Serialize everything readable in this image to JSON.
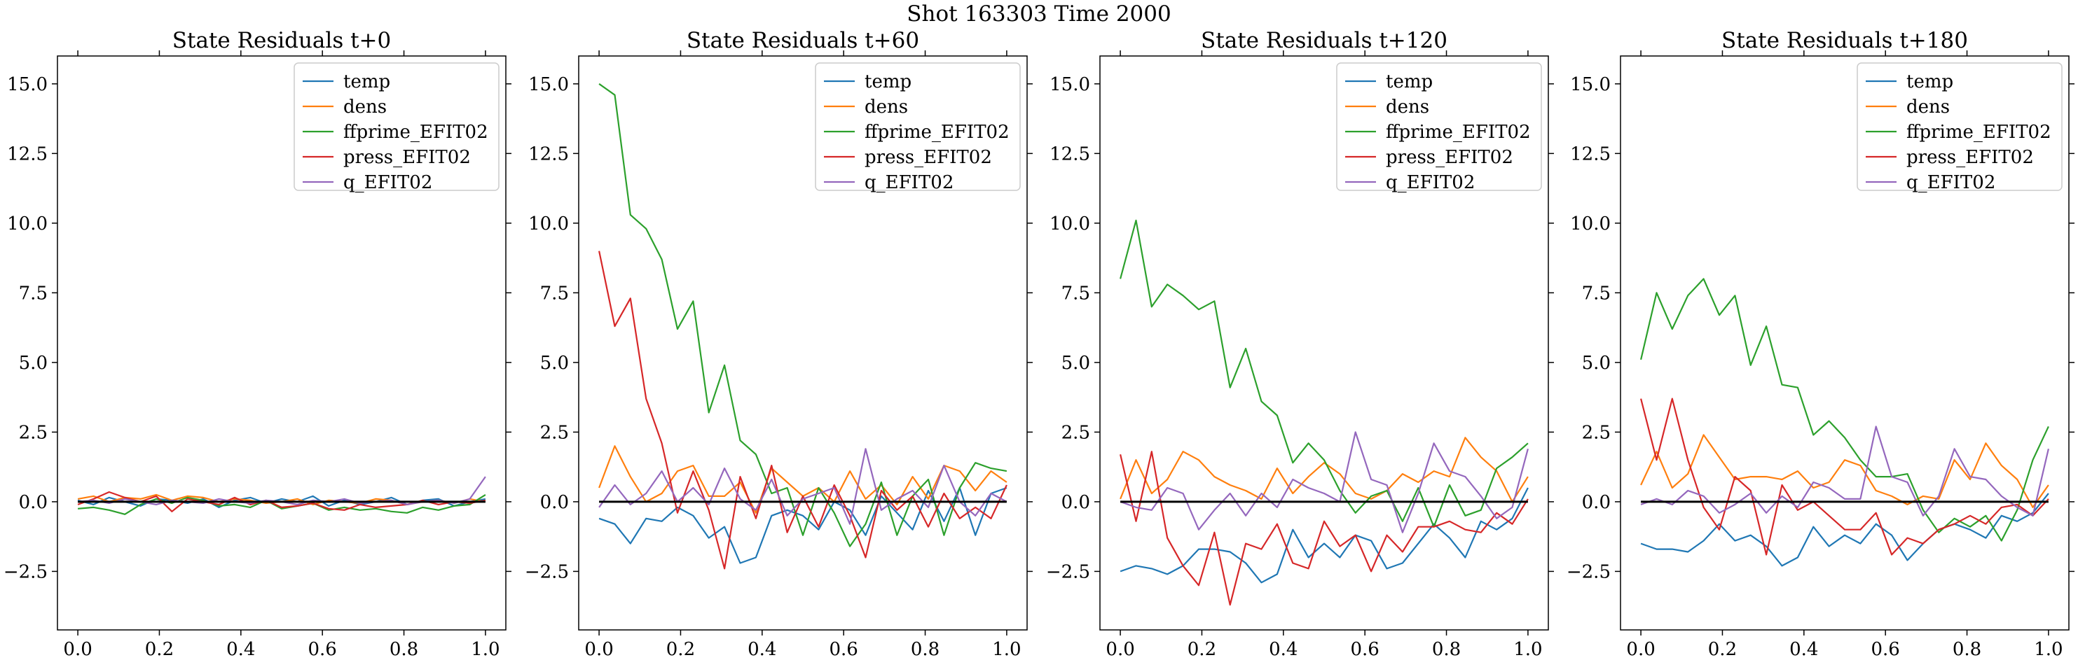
{
  "figure": {
    "title": "Shot 163303   Time 2000"
  },
  "chart_data": [
    {
      "type": "line",
      "title": "State Residuals t+0",
      "xlabel": "",
      "ylabel": "",
      "xlim": [
        -0.05,
        1.05
      ],
      "ylim": [
        -4.6,
        16.0
      ],
      "xticks": [
        0.0,
        0.2,
        0.4,
        0.6,
        0.8,
        1.0
      ],
      "xtick_labels": [
        "0.0",
        "0.2",
        "0.4",
        "0.6",
        "0.8",
        "1.0"
      ],
      "yticks": [
        -2.5,
        0.0,
        2.5,
        5.0,
        7.5,
        10.0,
        12.5,
        15.0
      ],
      "ytick_labels": [
        "−2.5",
        "0.0",
        "2.5",
        "5.0",
        "7.5",
        "10.0",
        "12.5",
        "15.0"
      ],
      "legend_position": "top-right",
      "zero_line": true,
      "x": [
        0.0,
        0.0385,
        0.0769,
        0.1154,
        0.1538,
        0.1923,
        0.2308,
        0.2692,
        0.3077,
        0.3462,
        0.3846,
        0.4231,
        0.4615,
        0.5,
        0.5385,
        0.5769,
        0.6154,
        0.6538,
        0.6923,
        0.7308,
        0.7692,
        0.8077,
        0.8462,
        0.8846,
        0.9231,
        0.9615,
        1.0
      ],
      "series": [
        {
          "name": "temp",
          "color": "#1f77b4",
          "values": [
            0.05,
            -0.1,
            0.15,
            0.0,
            -0.15,
            0.1,
            0.05,
            -0.05,
            0.1,
            -0.2,
            0.05,
            0.15,
            -0.05,
            0.1,
            0.0,
            0.2,
            -0.15,
            0.05,
            -0.1,
            0.0,
            0.15,
            -0.1,
            0.05,
            0.1,
            -0.15,
            0.0,
            0.1
          ]
        },
        {
          "name": "dens",
          "color": "#ff7f0e",
          "values": [
            0.1,
            0.2,
            0.0,
            0.15,
            0.1,
            0.25,
            0.05,
            0.2,
            0.15,
            0.0,
            0.1,
            0.05,
            -0.05,
            0.0,
            0.1,
            -0.1,
            0.05,
            0.0,
            -0.05,
            0.1,
            0.05,
            -0.1,
            0.0,
            0.05,
            -0.05,
            0.1,
            0.0
          ]
        },
        {
          "name": "ffprime_EFIT02",
          "color": "#2ca02c",
          "values": [
            -0.25,
            -0.2,
            -0.3,
            -0.45,
            -0.1,
            0.1,
            -0.05,
            0.15,
            0.05,
            -0.15,
            -0.1,
            -0.2,
            0.05,
            -0.25,
            -0.15,
            -0.05,
            -0.3,
            -0.2,
            -0.3,
            -0.25,
            -0.35,
            -0.4,
            -0.2,
            -0.3,
            -0.15,
            -0.1,
            0.25
          ]
        },
        {
          "name": "press_EFIT02",
          "color": "#d62728",
          "values": [
            -0.1,
            0.1,
            0.35,
            0.15,
            0.0,
            0.2,
            -0.35,
            0.1,
            0.0,
            -0.1,
            0.15,
            -0.1,
            0.05,
            -0.2,
            -0.15,
            -0.05,
            -0.25,
            -0.3,
            -0.1,
            -0.2,
            -0.15,
            -0.1,
            0.05,
            -0.1,
            0.0,
            -0.05,
            0.05
          ]
        },
        {
          "name": "q_EFIT02",
          "color": "#9467bd",
          "values": [
            0.0,
            0.05,
            -0.05,
            0.1,
            0.0,
            -0.1,
            0.05,
            0.0,
            -0.05,
            0.1,
            0.0,
            -0.05,
            0.05,
            0.0,
            -0.1,
            0.05,
            0.0,
            0.1,
            -0.05,
            0.0,
            0.05,
            -0.1,
            0.0,
            0.05,
            -0.05,
            0.1,
            0.9
          ]
        }
      ]
    },
    {
      "type": "line",
      "title": "State Residuals t+60",
      "xlabel": "",
      "ylabel": "",
      "xlim": [
        -0.05,
        1.05
      ],
      "ylim": [
        -4.6,
        16.0
      ],
      "xticks": [
        0.0,
        0.2,
        0.4,
        0.6,
        0.8,
        1.0
      ],
      "xtick_labels": [
        "0.0",
        "0.2",
        "0.4",
        "0.6",
        "0.8",
        "1.0"
      ],
      "yticks": [
        -2.5,
        0.0,
        2.5,
        5.0,
        7.5,
        10.0,
        12.5,
        15.0
      ],
      "ytick_labels": [
        "−2.5",
        "0.0",
        "2.5",
        "5.0",
        "7.5",
        "10.0",
        "12.5",
        "15.0"
      ],
      "legend_position": "top-right",
      "zero_line": true,
      "x": [
        0.0,
        0.0385,
        0.0769,
        0.1154,
        0.1538,
        0.1923,
        0.2308,
        0.2692,
        0.3077,
        0.3462,
        0.3846,
        0.4231,
        0.4615,
        0.5,
        0.5385,
        0.5769,
        0.6154,
        0.6538,
        0.6923,
        0.7308,
        0.7692,
        0.8077,
        0.8462,
        0.8846,
        0.9231,
        0.9615,
        1.0
      ],
      "series": [
        {
          "name": "temp",
          "color": "#1f77b4",
          "values": [
            -0.6,
            -0.8,
            -1.5,
            -0.6,
            -0.7,
            -0.2,
            -0.5,
            -1.3,
            -0.9,
            -2.2,
            -2.0,
            -0.5,
            -0.3,
            -0.5,
            -1.0,
            0.0,
            -0.3,
            -1.2,
            0.2,
            -0.4,
            -1.0,
            0.4,
            -0.7,
            0.5,
            -1.2,
            0.3,
            0.5
          ]
        },
        {
          "name": "dens",
          "color": "#ff7f0e",
          "values": [
            0.5,
            2.0,
            0.9,
            0.0,
            0.3,
            1.1,
            1.3,
            0.2,
            0.2,
            0.7,
            -0.4,
            1.2,
            0.7,
            0.2,
            0.5,
            0.0,
            1.1,
            0.1,
            0.6,
            -0.1,
            0.9,
            0.1,
            1.3,
            1.1,
            0.4,
            1.1,
            0.7
          ]
        },
        {
          "name": "ffprime_EFIT02",
          "color": "#2ca02c",
          "values": [
            15.0,
            14.6,
            10.3,
            9.8,
            8.7,
            6.2,
            7.2,
            3.2,
            4.9,
            2.2,
            1.7,
            0.3,
            0.5,
            -1.2,
            0.5,
            -0.4,
            -1.6,
            -0.8,
            0.7,
            -1.2,
            0.2,
            0.8,
            -1.2,
            0.5,
            1.4,
            1.2,
            1.1
          ]
        },
        {
          "name": "press_EFIT02",
          "color": "#d62728",
          "values": [
            9.0,
            6.3,
            7.3,
            3.7,
            2.1,
            -0.4,
            1.1,
            -0.3,
            -2.4,
            0.9,
            -0.6,
            1.3,
            -1.1,
            0.2,
            -0.9,
            0.6,
            -0.5,
            -2.0,
            0.4,
            -0.3,
            0.2,
            -0.9,
            0.3,
            -0.6,
            -0.2,
            -0.6,
            0.6
          ]
        },
        {
          "name": "q_EFIT02",
          "color": "#9467bd",
          "values": [
            -0.2,
            0.6,
            -0.1,
            0.3,
            1.1,
            0.0,
            0.5,
            -0.1,
            1.2,
            0.1,
            -0.3,
            0.8,
            -0.5,
            0.1,
            0.3,
            0.5,
            -0.8,
            1.9,
            -0.3,
            0.1,
            0.4,
            -0.2,
            1.3,
            0.0,
            -0.5,
            0.3,
            0.0
          ]
        }
      ]
    },
    {
      "type": "line",
      "title": "State Residuals t+120",
      "xlabel": "",
      "ylabel": "",
      "xlim": [
        -0.05,
        1.05
      ],
      "ylim": [
        -4.6,
        16.0
      ],
      "xticks": [
        0.0,
        0.2,
        0.4,
        0.6,
        0.8,
        1.0
      ],
      "xtick_labels": [
        "0.0",
        "0.2",
        "0.4",
        "0.6",
        "0.8",
        "1.0"
      ],
      "yticks": [
        -2.5,
        0.0,
        2.5,
        5.0,
        7.5,
        10.0,
        12.5,
        15.0
      ],
      "ytick_labels": [
        "−2.5",
        "0.0",
        "2.5",
        "5.0",
        "7.5",
        "10.0",
        "12.5",
        "15.0"
      ],
      "legend_position": "top-right",
      "zero_line": true,
      "x": [
        0.0,
        0.0385,
        0.0769,
        0.1154,
        0.1538,
        0.1923,
        0.2308,
        0.2692,
        0.3077,
        0.3462,
        0.3846,
        0.4231,
        0.4615,
        0.5,
        0.5385,
        0.5769,
        0.6154,
        0.6538,
        0.6923,
        0.7308,
        0.7692,
        0.8077,
        0.8462,
        0.8846,
        0.9231,
        0.9615,
        1.0
      ],
      "series": [
        {
          "name": "temp",
          "color": "#1f77b4",
          "values": [
            -2.5,
            -2.3,
            -2.4,
            -2.6,
            -2.3,
            -1.7,
            -1.7,
            -1.8,
            -2.2,
            -2.9,
            -2.6,
            -1.0,
            -2.0,
            -1.5,
            -2.0,
            -1.2,
            -1.4,
            -2.4,
            -2.2,
            -1.5,
            -0.8,
            -1.3,
            -2.0,
            -0.7,
            -1.0,
            -0.6,
            0.5
          ]
        },
        {
          "name": "dens",
          "color": "#ff7f0e",
          "values": [
            0.1,
            1.5,
            0.3,
            0.8,
            1.8,
            1.5,
            0.9,
            0.6,
            0.4,
            0.1,
            1.2,
            0.3,
            0.9,
            1.4,
            1.0,
            0.3,
            0.1,
            0.4,
            1.0,
            0.7,
            1.1,
            0.9,
            2.3,
            1.6,
            1.1,
            0.0,
            0.9
          ]
        },
        {
          "name": "ffprime_EFIT02",
          "color": "#2ca02c",
          "values": [
            8.0,
            10.1,
            7.0,
            7.8,
            7.4,
            6.9,
            7.2,
            4.1,
            5.5,
            3.6,
            3.1,
            1.4,
            2.1,
            1.5,
            0.4,
            -0.4,
            0.2,
            0.4,
            -0.7,
            0.5,
            -0.9,
            0.6,
            -0.5,
            -0.3,
            1.2,
            1.6,
            2.1
          ]
        },
        {
          "name": "press_EFIT02",
          "color": "#d62728",
          "values": [
            1.7,
            -0.7,
            1.8,
            -1.3,
            -2.3,
            -3.0,
            -1.1,
            -3.7,
            -1.5,
            -1.7,
            -0.8,
            -2.2,
            -2.4,
            -0.7,
            -1.6,
            -1.2,
            -2.5,
            -1.2,
            -1.8,
            -0.9,
            -0.9,
            -0.7,
            -1.0,
            -1.1,
            -0.4,
            -0.8,
            0.1
          ]
        },
        {
          "name": "q_EFIT02",
          "color": "#9467bd",
          "values": [
            0.0,
            -0.2,
            -0.3,
            0.5,
            0.3,
            -1.0,
            -0.3,
            0.3,
            -0.5,
            0.3,
            -0.2,
            0.8,
            0.5,
            0.3,
            0.0,
            2.5,
            0.8,
            0.6,
            -1.1,
            0.3,
            2.1,
            1.1,
            0.9,
            0.2,
            -0.6,
            -0.2,
            1.9
          ]
        }
      ]
    },
    {
      "type": "line",
      "title": "State Residuals t+180",
      "xlabel": "",
      "ylabel": "",
      "xlim": [
        -0.05,
        1.05
      ],
      "ylim": [
        -4.6,
        16.0
      ],
      "xticks": [
        0.0,
        0.2,
        0.4,
        0.6,
        0.8,
        1.0
      ],
      "xtick_labels": [
        "0.0",
        "0.2",
        "0.4",
        "0.6",
        "0.8",
        "1.0"
      ],
      "yticks": [
        -2.5,
        0.0,
        2.5,
        5.0,
        7.5,
        10.0,
        12.5,
        15.0
      ],
      "ytick_labels": [
        "−2.5",
        "0.0",
        "2.5",
        "5.0",
        "7.5",
        "10.0",
        "12.5",
        "15.0"
      ],
      "legend_position": "top-right",
      "zero_line": true,
      "x": [
        0.0,
        0.0385,
        0.0769,
        0.1154,
        0.1538,
        0.1923,
        0.2308,
        0.2692,
        0.3077,
        0.3462,
        0.3846,
        0.4231,
        0.4615,
        0.5,
        0.5385,
        0.5769,
        0.6154,
        0.6538,
        0.6923,
        0.7308,
        0.7692,
        0.8077,
        0.8462,
        0.8846,
        0.9231,
        0.9615,
        1.0
      ],
      "series": [
        {
          "name": "temp",
          "color": "#1f77b4",
          "values": [
            -1.5,
            -1.7,
            -1.7,
            -1.8,
            -1.4,
            -0.8,
            -1.4,
            -1.2,
            -1.6,
            -2.3,
            -2.0,
            -0.9,
            -1.6,
            -1.2,
            -1.5,
            -0.8,
            -1.2,
            -2.1,
            -1.5,
            -1.0,
            -0.8,
            -1.0,
            -1.3,
            -0.5,
            -0.7,
            -0.4,
            0.3
          ]
        },
        {
          "name": "dens",
          "color": "#ff7f0e",
          "values": [
            0.6,
            1.8,
            0.5,
            1.0,
            2.4,
            1.6,
            0.8,
            0.9,
            0.9,
            0.8,
            1.1,
            0.5,
            0.7,
            1.5,
            1.3,
            0.4,
            0.2,
            -0.1,
            0.2,
            0.1,
            1.5,
            0.8,
            2.1,
            1.3,
            0.8,
            -0.2,
            0.6
          ]
        },
        {
          "name": "ffprime_EFIT02",
          "color": "#2ca02c",
          "values": [
            5.1,
            7.5,
            6.2,
            7.4,
            8.0,
            6.7,
            7.4,
            4.9,
            6.3,
            4.2,
            4.1,
            2.4,
            2.9,
            2.3,
            1.5,
            0.9,
            0.9,
            1.0,
            -0.3,
            -1.1,
            -0.6,
            -0.9,
            -0.5,
            -1.4,
            -0.3,
            1.5,
            2.7
          ]
        },
        {
          "name": "press_EFIT02",
          "color": "#d62728",
          "values": [
            3.7,
            1.5,
            3.7,
            1.5,
            -0.2,
            -1.0,
            0.9,
            0.4,
            -1.9,
            0.6,
            -0.3,
            0.0,
            -0.5,
            -1.0,
            -1.0,
            -0.4,
            -1.9,
            -1.3,
            -1.5,
            -1.0,
            -0.8,
            -0.5,
            -0.8,
            -0.2,
            -0.1,
            -0.5,
            0.1
          ]
        },
        {
          "name": "q_EFIT02",
          "color": "#9467bd",
          "values": [
            -0.1,
            0.1,
            -0.1,
            0.4,
            0.2,
            -0.4,
            -0.1,
            0.3,
            -0.4,
            0.2,
            -0.2,
            0.7,
            0.5,
            0.1,
            0.1,
            2.7,
            0.9,
            0.7,
            -0.5,
            0.2,
            1.9,
            0.9,
            0.8,
            0.2,
            -0.2,
            -0.5,
            1.9
          ]
        }
      ]
    }
  ]
}
